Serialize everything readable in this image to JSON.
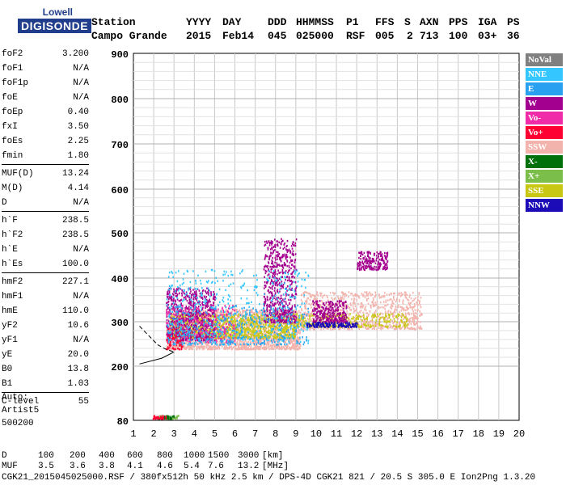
{
  "logo": {
    "line1": "Lowell",
    "line2": "DIGISONDE"
  },
  "header": {
    "labels": [
      "Station",
      "YYYY",
      "DAY",
      "DDD",
      "HHMMSS",
      "P1",
      "FFS",
      "S",
      "AXN",
      "PPS",
      "IGA",
      "PS"
    ],
    "values": [
      "Campo Grande",
      "2015",
      "Feb14",
      "045",
      "025000",
      "RSF",
      "005",
      "2",
      "713",
      "100",
      "03+",
      "36"
    ]
  },
  "params": [
    [
      {
        "k": "foF2",
        "v": "3.200"
      },
      {
        "k": "foF1",
        "v": "N/A"
      },
      {
        "k": "foF1p",
        "v": "N/A"
      },
      {
        "k": "foE",
        "v": "N/A"
      },
      {
        "k": "foEp",
        "v": "0.40"
      },
      {
        "k": "fxI",
        "v": "3.50"
      },
      {
        "k": "foEs",
        "v": "2.25"
      },
      {
        "k": "fmin",
        "v": "1.80"
      }
    ],
    [
      {
        "k": "MUF(D)",
        "v": "13.24"
      },
      {
        "k": "M(D)",
        "v": "4.14"
      },
      {
        "k": "D",
        "v": "N/A"
      }
    ],
    [
      {
        "k": "h`F",
        "v": "238.5"
      },
      {
        "k": "h`F2",
        "v": "238.5"
      },
      {
        "k": "h`E",
        "v": "N/A"
      },
      {
        "k": "h`Es",
        "v": "100.0"
      }
    ],
    [
      {
        "k": "hmF2",
        "v": "227.1"
      },
      {
        "k": "hmF1",
        "v": "N/A"
      },
      {
        "k": "hmE",
        "v": "110.0"
      },
      {
        "k": "yF2",
        "v": "10.6"
      },
      {
        "k": "yF1",
        "v": "N/A"
      },
      {
        "k": "yE",
        "v": "20.0"
      },
      {
        "k": "B0",
        "v": "13.8"
      },
      {
        "k": "B1",
        "v": "1.03"
      }
    ],
    [
      {
        "k": "C-level",
        "v": "55"
      }
    ]
  ],
  "auto": [
    "Auto:",
    "Artist5",
    "500200"
  ],
  "legend": [
    {
      "label": "NoVal",
      "color": "#808080"
    },
    {
      "label": "NNE",
      "color": "#33c6ff"
    },
    {
      "label": "E",
      "color": "#2aa0f0"
    },
    {
      "label": "W",
      "color": "#a4008f"
    },
    {
      "label": "Vo-",
      "color": "#f02ca8"
    },
    {
      "label": "Vo+",
      "color": "#ff0033"
    },
    {
      "label": "SSW",
      "color": "#f3b3ad"
    },
    {
      "label": "X-",
      "color": "#00700a"
    },
    {
      "label": "X+",
      "color": "#7cbe4a"
    },
    {
      "label": "SSE",
      "color": "#c8c814"
    },
    {
      "label": "NNW",
      "color": "#1c0cb8"
    }
  ],
  "footer": {
    "d_label": "D",
    "d_values": [
      "100",
      "200",
      "400",
      "600",
      "800",
      "1000",
      "1500",
      "3000",
      "[km]"
    ],
    "muf_label": "MUF",
    "muf_values": [
      "3.5",
      "3.6",
      "3.8",
      "4.1",
      "4.6",
      "5.4",
      "7.6",
      "13.2",
      "[MHz]"
    ],
    "info": "CGK21_2015045025000.RSF / 380fx512h 50 kHz 2.5 km / DPS-4D CGK21 821 / 20.5 S 305.0 E Ion2Png 1.3.20"
  },
  "chart_data": {
    "type": "scatter",
    "xlim": [
      1,
      20
    ],
    "ylim": [
      80,
      900
    ],
    "xticks": [
      "1",
      "2",
      "3",
      "4",
      "5",
      "6",
      "7",
      "8",
      "9",
      "10",
      "11",
      "12",
      "13",
      "14",
      "15",
      "16",
      "17",
      "18",
      "19",
      "20"
    ],
    "yticks": [
      "80",
      "200",
      "300",
      "400",
      "500",
      "600",
      "700",
      "800",
      "900"
    ],
    "grid": true,
    "legend_position": "right",
    "clusters": [
      {
        "name": "SSW",
        "color": "#f3b3ad",
        "x": [
          2.6,
          9.2
        ],
        "y": [
          240,
          330
        ],
        "n": 2200
      },
      {
        "name": "SSW",
        "color": "#f3b3ad",
        "x": [
          9.2,
          15.2
        ],
        "y": [
          285,
          370
        ],
        "n": 900
      },
      {
        "name": "SSE",
        "color": "#c8c814",
        "x": [
          2.8,
          9.0
        ],
        "y": [
          265,
          320
        ],
        "n": 1100
      },
      {
        "name": "SSE",
        "color": "#c8c814",
        "x": [
          9.0,
          14.5
        ],
        "y": [
          290,
          320
        ],
        "n": 300
      },
      {
        "name": "W",
        "color": "#a4008f",
        "x": [
          2.6,
          5.0
        ],
        "y": [
          260,
          380
        ],
        "n": 700
      },
      {
        "name": "W",
        "color": "#a4008f",
        "x": [
          7.4,
          9.0
        ],
        "y": [
          300,
          490
        ],
        "n": 600
      },
      {
        "name": "W",
        "color": "#a4008f",
        "x": [
          9.8,
          11.5
        ],
        "y": [
          300,
          350
        ],
        "n": 300
      },
      {
        "name": "W",
        "color": "#a4008f",
        "x": [
          12.0,
          13.5
        ],
        "y": [
          420,
          460
        ],
        "n": 200
      },
      {
        "name": "Vo-",
        "color": "#f02ca8",
        "x": [
          2.6,
          6.0
        ],
        "y": [
          255,
          340
        ],
        "n": 250
      },
      {
        "name": "Vo+",
        "color": "#ff0033",
        "x": [
          2.6,
          3.4
        ],
        "y": [
          240,
          290
        ],
        "n": 80
      },
      {
        "name": "NNE",
        "color": "#33c6ff",
        "x": [
          2.6,
          9.6
        ],
        "y": [
          250,
          420
        ],
        "n": 500
      },
      {
        "name": "E",
        "color": "#2aa0f0",
        "x": [
          2.6,
          9.6
        ],
        "y": [
          250,
          340
        ],
        "n": 300
      },
      {
        "name": "NNW",
        "color": "#1c0cb8",
        "x": [
          9.5,
          12.0
        ],
        "y": [
          290,
          300
        ],
        "n": 150
      },
      {
        "name": "X+",
        "color": "#7cbe4a",
        "x": [
          2.2,
          3.2
        ],
        "y": [
          85,
          92
        ],
        "n": 40
      },
      {
        "name": "X-",
        "color": "#00700a",
        "x": [
          2.2,
          3.0
        ],
        "y": [
          85,
          92
        ],
        "n": 30
      },
      {
        "name": "Vo+",
        "color": "#ff0033",
        "x": [
          1.9,
          2.6
        ],
        "y": [
          85,
          92
        ],
        "n": 40
      }
    ],
    "trace": [
      [
        1.3,
        290
      ],
      [
        2.2,
        248
      ],
      [
        2.6,
        238
      ],
      [
        3.0,
        232
      ],
      [
        2.4,
        218
      ],
      [
        1.3,
        205
      ]
    ]
  }
}
